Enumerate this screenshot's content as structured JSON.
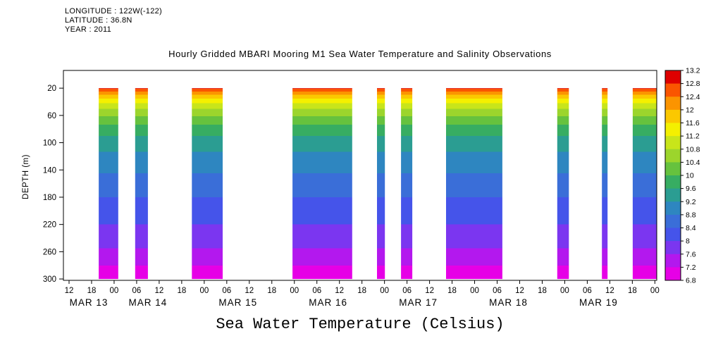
{
  "header": {
    "longitude": "LONGITUDE : 122W(-122)",
    "latitude": "LATITUDE : 36.8N",
    "year": "YEAR : 2011"
  },
  "footer_title": "Sea Water Temperature (Celsius)",
  "chart_data": {
    "type": "heatmap",
    "title": "Hourly Gridded MBARI Mooring M1 Sea Water Temperature and Salinity Observations",
    "ylabel": "DEPTH (m)",
    "xlabel": "",
    "grid": false,
    "legend_position": "right",
    "y_ticks_depth_m": [
      20,
      60,
      100,
      140,
      180,
      220,
      260,
      300
    ],
    "depth_axis_range_m": [
      -6,
      302
    ],
    "depth_extent_m": [
      20,
      300
    ],
    "x_axis": {
      "total_hours": 158,
      "hour_ticks": {
        "first_hour": 1.5,
        "step_hours": 6,
        "labels": [
          "12",
          "18",
          "00",
          "06",
          "12",
          "18",
          "00",
          "06",
          "12",
          "18",
          "00",
          "06",
          "12",
          "18",
          "00",
          "06",
          "12",
          "18",
          "00",
          "06",
          "12",
          "18",
          "00",
          "06",
          "12",
          "18",
          "00"
        ]
      },
      "date_labels": [
        {
          "hour": 6.75,
          "label": "MAR 13"
        },
        {
          "hour": 22.5,
          "label": "MAR 14"
        },
        {
          "hour": 46.5,
          "label": "MAR 15"
        },
        {
          "hour": 70.5,
          "label": "MAR 16"
        },
        {
          "hour": 94.5,
          "label": "MAR 17"
        },
        {
          "hour": 118.5,
          "label": "MAR 18"
        },
        {
          "hour": 142.5,
          "label": "MAR 19"
        }
      ]
    },
    "data_bands_hours": [
      {
        "start": 9.4,
        "end": 14.6
      },
      {
        "start": 19.1,
        "end": 22.5
      },
      {
        "start": 34.2,
        "end": 42.4
      },
      {
        "start": 61.0,
        "end": 76.9
      },
      {
        "start": 83.5,
        "end": 85.6
      },
      {
        "start": 89.9,
        "end": 92.9
      },
      {
        "start": 101.9,
        "end": 116.9
      },
      {
        "start": 131.5,
        "end": 134.6
      },
      {
        "start": 143.4,
        "end": 144.9
      },
      {
        "start": 151.6,
        "end": 157.9
      }
    ],
    "mean_temp_profile_depth_c": [
      [
        20,
        12.9
      ],
      [
        24,
        12.5
      ],
      [
        28,
        12.1
      ],
      [
        34,
        11.7
      ],
      [
        40,
        11.3
      ],
      [
        48,
        10.9
      ],
      [
        58,
        10.5
      ],
      [
        70,
        10.1
      ],
      [
        85,
        9.7
      ],
      [
        100,
        9.4
      ],
      [
        120,
        9.1
      ],
      [
        145,
        8.8
      ],
      [
        170,
        8.5
      ],
      [
        200,
        8.2
      ],
      [
        230,
        7.9
      ],
      [
        255,
        7.6
      ],
      [
        275,
        7.3
      ],
      [
        290,
        7.0
      ],
      [
        300,
        6.85
      ]
    ],
    "colorbar": {
      "range_c": [
        6.8,
        13.2
      ],
      "cell_width_c": 0.4,
      "tick_values_top_to_bottom": [
        13.2,
        12.8,
        12.4,
        12,
        11.6,
        11.2,
        10.8,
        10.4,
        10,
        9.6,
        9.2,
        8.8,
        8.4,
        8,
        7.6,
        7.2,
        6.8
      ],
      "cell_colors_top_to_bottom": [
        "#de0000",
        "#fa5500",
        "#fb9400",
        "#fbc800",
        "#f4f000",
        "#c8e51a",
        "#9cd52c",
        "#66c23e",
        "#37ad62",
        "#2b9d92",
        "#2e86c0",
        "#3a6ed8",
        "#4554ea",
        "#7b36f0",
        "#b318ee",
        "#e600e6"
      ]
    }
  }
}
